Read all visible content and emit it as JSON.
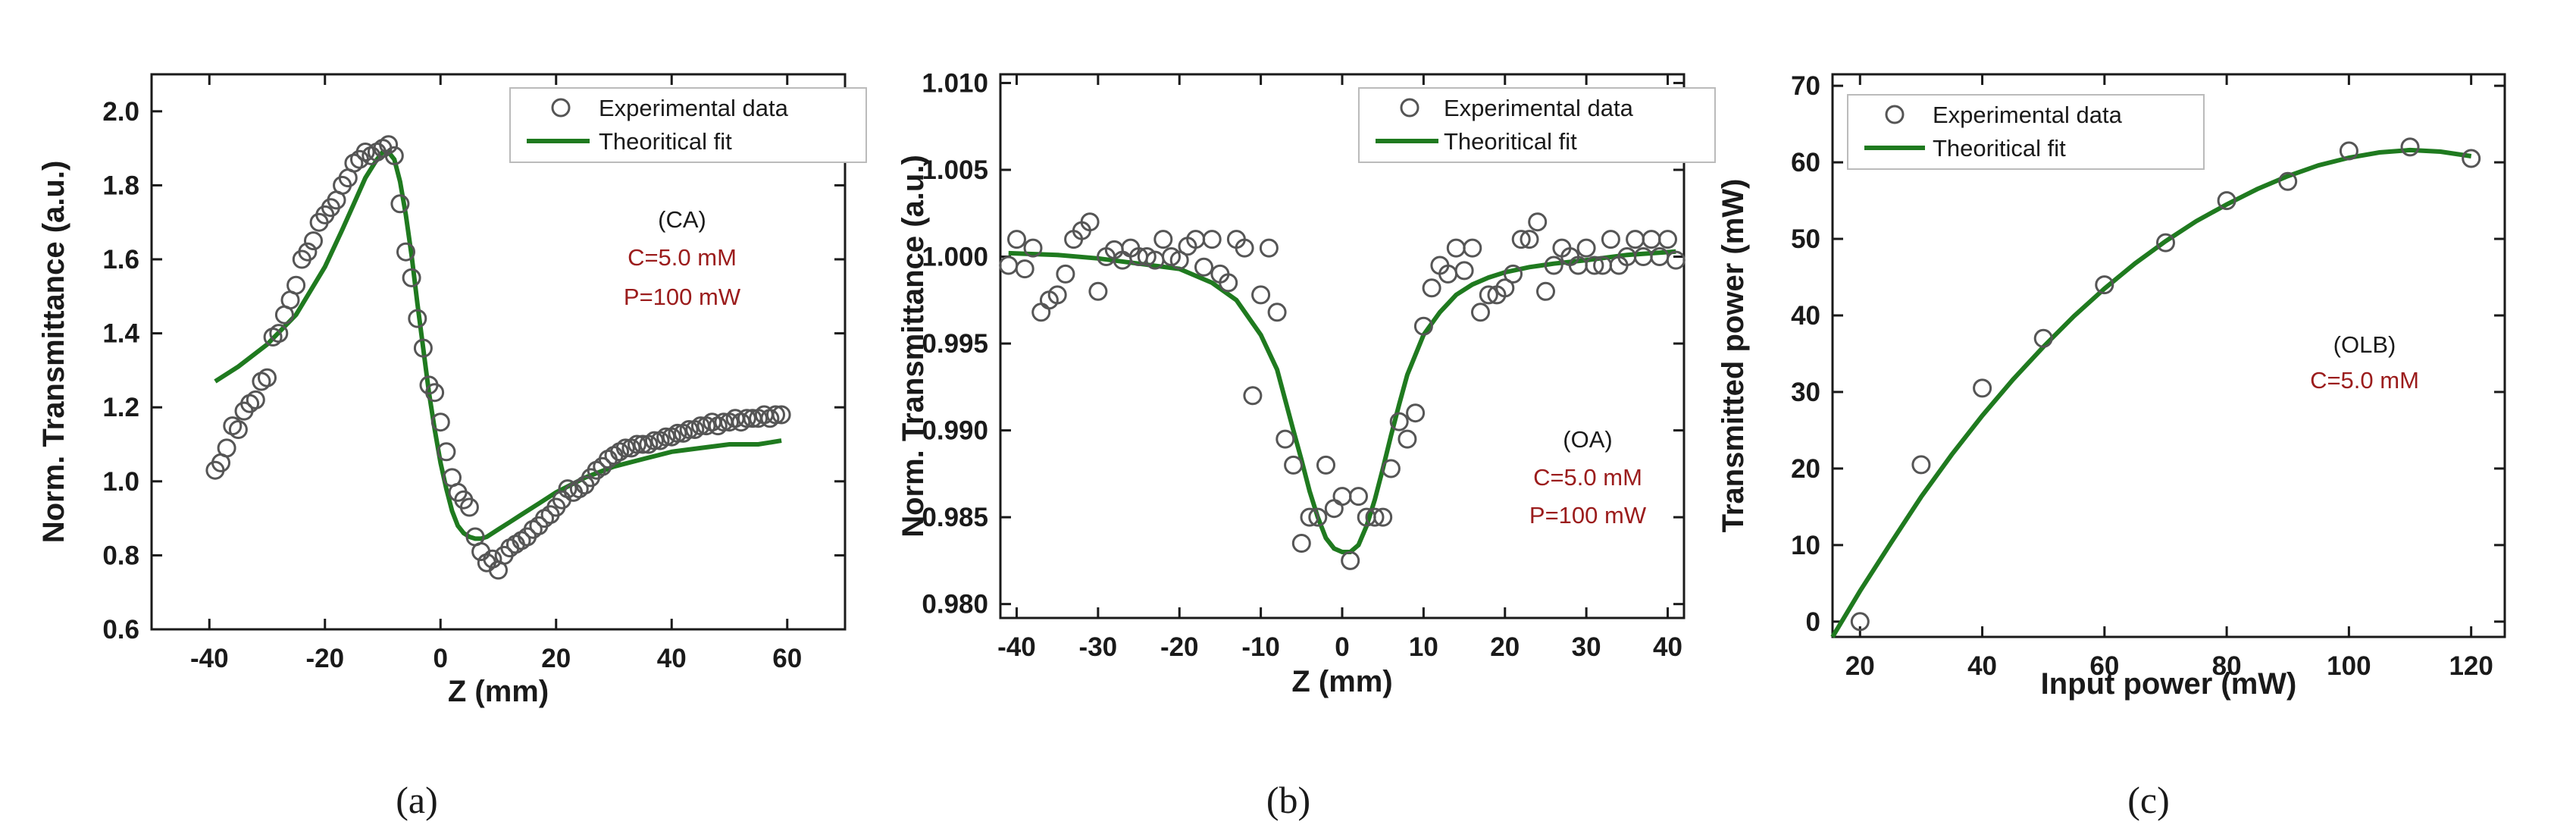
{
  "chart_data": [
    {
      "type": "scatter",
      "title": "",
      "xlabel": "Z (mm)",
      "ylabel": "Norm. Transmittance (a.u.)",
      "xlim": [
        -50,
        70
      ],
      "ylim": [
        0.6,
        2.1
      ],
      "xticks": [
        -40,
        -20,
        0,
        20,
        40,
        60
      ],
      "yticks": [
        0.6,
        0.8,
        1.0,
        1.2,
        1.4,
        1.6,
        1.8,
        2.0
      ],
      "x_tick_labels": [
        "-40",
        "-20",
        "0",
        "20",
        "40",
        "60"
      ],
      "y_tick_labels": [
        "0.6",
        "0.8",
        "1.0",
        "1.2",
        "1.4",
        "1.6",
        "1.8",
        "2.0"
      ],
      "legend": [
        "Experimental data",
        "Theoritical fit"
      ],
      "legend_position": "top-right",
      "annotations": {
        "mode": "(CA)",
        "conc": "C=5.0 mM",
        "power": "P=100 mW"
      },
      "panel_label": "(a)",
      "series": [
        {
          "name": "Experimental data",
          "kind": "markers",
          "x": [
            -39,
            -38,
            -37,
            -36,
            -35,
            -34,
            -33,
            -32,
            -31,
            -30,
            -29,
            -28,
            -27,
            -26,
            -25,
            -24,
            -23,
            -22,
            -21,
            -20,
            -19,
            -18,
            -17,
            -16,
            -15,
            -14,
            -13,
            -12,
            -11,
            -10,
            -9,
            -8,
            -7,
            -6,
            -5,
            -4,
            -3,
            -2,
            -1,
            0,
            1,
            2,
            3,
            4,
            5,
            6,
            7,
            8,
            9,
            10,
            11,
            12,
            13,
            14,
            15,
            16,
            17,
            18,
            19,
            20,
            21,
            22,
            23,
            24,
            25,
            26,
            27,
            28,
            29,
            30,
            31,
            32,
            33,
            34,
            35,
            36,
            37,
            38,
            39,
            40,
            41,
            42,
            43,
            44,
            45,
            46,
            47,
            48,
            49,
            50,
            51,
            52,
            53,
            54,
            55,
            56,
            57,
            58,
            59
          ],
          "y": [
            1.03,
            1.05,
            1.09,
            1.15,
            1.14,
            1.19,
            1.21,
            1.22,
            1.27,
            1.28,
            1.39,
            1.4,
            1.45,
            1.49,
            1.53,
            1.6,
            1.62,
            1.65,
            1.7,
            1.72,
            1.74,
            1.76,
            1.8,
            1.82,
            1.86,
            1.87,
            1.89,
            1.88,
            1.89,
            1.9,
            1.91,
            1.88,
            1.75,
            1.62,
            1.55,
            1.44,
            1.36,
            1.26,
            1.24,
            1.16,
            1.08,
            1.01,
            0.97,
            0.95,
            0.93,
            0.85,
            0.81,
            0.78,
            0.79,
            0.76,
            0.8,
            0.82,
            0.83,
            0.84,
            0.85,
            0.87,
            0.88,
            0.9,
            0.91,
            0.93,
            0.95,
            0.98,
            0.97,
            0.98,
            0.99,
            1.01,
            1.03,
            1.04,
            1.06,
            1.07,
            1.08,
            1.09,
            1.09,
            1.1,
            1.1,
            1.1,
            1.11,
            1.11,
            1.12,
            1.12,
            1.13,
            1.13,
            1.14,
            1.14,
            1.15,
            1.15,
            1.16,
            1.15,
            1.16,
            1.16,
            1.17,
            1.16,
            1.17,
            1.17,
            1.17,
            1.18,
            1.17,
            1.18,
            1.18
          ]
        },
        {
          "name": "Theoritical fit",
          "kind": "line",
          "x": [
            -39,
            -35,
            -30,
            -25,
            -20,
            -17,
            -15,
            -13,
            -11,
            -10,
            -9,
            -8,
            -7,
            -6,
            -5,
            -4,
            -3,
            -2,
            -1,
            0,
            1,
            2,
            3,
            4,
            5,
            6,
            7,
            8,
            10,
            12,
            14,
            17,
            20,
            25,
            30,
            35,
            40,
            45,
            50,
            55,
            59
          ],
          "y": [
            1.27,
            1.31,
            1.37,
            1.45,
            1.58,
            1.68,
            1.75,
            1.82,
            1.87,
            1.89,
            1.89,
            1.87,
            1.81,
            1.72,
            1.61,
            1.48,
            1.36,
            1.24,
            1.14,
            1.05,
            0.98,
            0.92,
            0.88,
            0.86,
            0.85,
            0.845,
            0.845,
            0.85,
            0.87,
            0.89,
            0.91,
            0.94,
            0.97,
            1.01,
            1.04,
            1.06,
            1.08,
            1.09,
            1.1,
            1.1,
            1.11
          ]
        }
      ]
    },
    {
      "type": "scatter",
      "title": "",
      "xlabel": "Z (mm)",
      "ylabel": "Norm. Transmittance (a.u.)",
      "xlim": [
        -42,
        42
      ],
      "ylim": [
        0.9792,
        1.0105
      ],
      "xticks": [
        -40,
        -30,
        -20,
        -10,
        0,
        10,
        20,
        30,
        40
      ],
      "yticks": [
        0.98,
        0.985,
        0.99,
        0.995,
        1.0,
        1.005,
        1.01
      ],
      "x_tick_labels": [
        "-40",
        "-30",
        "-20",
        "-10",
        "0",
        "10",
        "20",
        "30",
        "40"
      ],
      "y_tick_labels": [
        "0.980",
        "0.985",
        "0.990",
        "0.995",
        "1.000",
        "1.005",
        "1.010"
      ],
      "legend": [
        "Experimental data",
        "Theoritical fit"
      ],
      "legend_position": "top-right",
      "annotations": {
        "mode": "(OA)",
        "conc": "C=5.0 mM",
        "power": "P=100 mW"
      },
      "panel_label": "(b)",
      "series": [
        {
          "name": "Experimental data",
          "kind": "markers",
          "x": [
            -41,
            -40,
            -39,
            -38,
            -37,
            -36,
            -35,
            -34,
            -33,
            -32,
            -31,
            -30,
            -29,
            -28,
            -27,
            -26,
            -25,
            -24,
            -23,
            -22,
            -21,
            -20,
            -19,
            -18,
            -17,
            -16,
            -15,
            -14,
            -13,
            -12,
            -11,
            -10,
            -9,
            -8,
            -7,
            -6,
            -5,
            -4,
            -3,
            -2,
            -1,
            0,
            1,
            2,
            3,
            4,
            5,
            6,
            7,
            8,
            9,
            10,
            11,
            12,
            13,
            14,
            15,
            16,
            17,
            18,
            19,
            20,
            21,
            22,
            23,
            24,
            25,
            26,
            27,
            28,
            29,
            30,
            31,
            32,
            33,
            34,
            35,
            36,
            37,
            38,
            39,
            40,
            41
          ],
          "y": [
            0.9995,
            1.001,
            0.9993,
            1.0005,
            0.9968,
            0.9975,
            0.9978,
            0.999,
            1.001,
            1.0015,
            1.002,
            0.998,
            1.0,
            1.0004,
            0.9998,
            1.0005,
            1.0,
            1.0,
            0.9998,
            1.001,
            1.0,
            0.9998,
            1.0006,
            1.001,
            0.9994,
            1.001,
            0.999,
            0.9985,
            1.001,
            1.0005,
            0.992,
            0.9978,
            1.0005,
            0.9968,
            0.9895,
            0.988,
            0.9835,
            0.985,
            0.985,
            0.988,
            0.9855,
            0.9862,
            0.9825,
            0.9862,
            0.985,
            0.985,
            0.985,
            0.9878,
            0.9905,
            0.9895,
            0.991,
            0.996,
            0.9982,
            0.9995,
            0.999,
            1.0005,
            0.9992,
            1.0005,
            0.9968,
            0.9978,
            0.9978,
            0.9982,
            0.999,
            1.001,
            1.001,
            1.002,
            0.998,
            0.9995,
            1.0005,
            1.0,
            0.9995,
            1.0005,
            0.9995,
            0.9995,
            1.001,
            0.9995,
            1.0,
            1.001,
            1.0,
            1.001,
            1.0,
            1.001,
            0.9998
          ]
        },
        {
          "name": "Theoritical fit",
          "kind": "line",
          "x": [
            -41,
            -35,
            -30,
            -25,
            -20,
            -16,
            -13,
            -10,
            -8,
            -6,
            -5,
            -4,
            -3,
            -2,
            -1,
            0,
            1,
            2,
            3,
            4,
            5,
            6,
            7,
            8,
            10,
            12,
            14,
            16,
            18,
            20,
            23,
            26,
            30,
            35,
            41
          ],
          "y": [
            1.0002,
            1.0001,
            0.9999,
            0.9996,
            0.9993,
            0.9985,
            0.9975,
            0.9955,
            0.9935,
            0.99,
            0.9883,
            0.9865,
            0.985,
            0.9838,
            0.9832,
            0.983,
            0.983,
            0.9834,
            0.9845,
            0.986,
            0.9878,
            0.9897,
            0.9915,
            0.9932,
            0.9955,
            0.9968,
            0.9978,
            0.9984,
            0.9988,
            0.9991,
            0.9994,
            0.9996,
            0.9998,
            1.0001,
            1.0003
          ]
        }
      ]
    },
    {
      "type": "scatter",
      "title": "",
      "xlabel": "Input power (mW)",
      "ylabel": "Transmitted power (mW)",
      "xlim": [
        15.5,
        125.5
      ],
      "ylim": [
        -2,
        71.5
      ],
      "xticks": [
        20,
        40,
        60,
        80,
        100,
        120
      ],
      "yticks": [
        0,
        10,
        20,
        30,
        40,
        50,
        60,
        70
      ],
      "x_tick_labels": [
        "20",
        "40",
        "60",
        "80",
        "100",
        "120"
      ],
      "y_tick_labels": [
        "0",
        "10",
        "20",
        "30",
        "40",
        "50",
        "60",
        "70"
      ],
      "legend": [
        "Experimental data",
        "Theoritical fit"
      ],
      "legend_position": "top-left",
      "annotations": {
        "mode": "(OLB)",
        "conc": "C=5.0 mM"
      },
      "panel_label": "(c)",
      "series": [
        {
          "name": "Experimental data",
          "kind": "markers",
          "x": [
            20,
            30,
            40,
            50,
            60,
            70,
            80,
            90,
            100,
            110,
            120
          ],
          "y": [
            0,
            20.5,
            30.5,
            37,
            44,
            49.5,
            55,
            57.5,
            61.5,
            62,
            60.5
          ]
        },
        {
          "name": "Theoritical fit",
          "kind": "line",
          "x": [
            15.5,
            20,
            25,
            30,
            35,
            40,
            45,
            50,
            55,
            60,
            65,
            70,
            75,
            80,
            85,
            90,
            95,
            100,
            105,
            110,
            115,
            120
          ],
          "y": [
            -2,
            4,
            10.2,
            16.3,
            21.8,
            26.9,
            31.6,
            35.9,
            39.9,
            43.5,
            46.8,
            49.7,
            52.3,
            54.5,
            56.5,
            58.2,
            59.6,
            60.6,
            61.3,
            61.6,
            61.4,
            60.8
          ]
        }
      ]
    }
  ]
}
